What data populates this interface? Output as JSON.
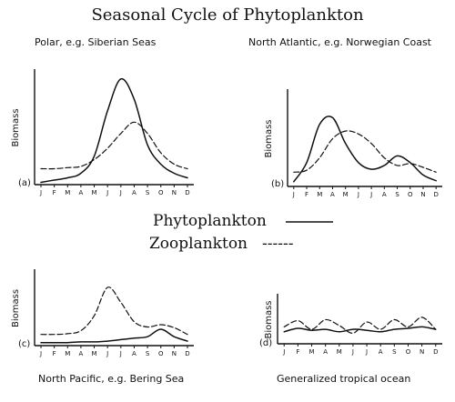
{
  "figure": {
    "title": "Seasonal Cycle of Phytoplankton",
    "legend": [
      {
        "label": "Phytoplankton",
        "style": "solid"
      },
      {
        "label": "Zooplankton",
        "style": "dashed",
        "marker": "------"
      }
    ]
  },
  "chart_data": [
    {
      "type": "line",
      "panel": "(a)",
      "title": "Polar, e.g. Siberian Seas",
      "ylabel": "Biomass",
      "categories": [
        "J",
        "F",
        "M",
        "A",
        "M",
        "J",
        "J",
        "A",
        "S",
        "O",
        "N",
        "D"
      ],
      "ylim": [
        0,
        100
      ],
      "series": [
        {
          "name": "Phytoplankton",
          "style": "solid",
          "values": [
            2,
            4,
            6,
            10,
            25,
            65,
            93,
            75,
            35,
            18,
            10,
            6
          ]
        },
        {
          "name": "Zooplankton",
          "style": "dashed",
          "values": [
            14,
            14,
            15,
            16,
            22,
            32,
            45,
            55,
            45,
            28,
            18,
            14
          ]
        }
      ]
    },
    {
      "type": "line",
      "panel": "(b)",
      "title": "North Atlantic, e.g. Norwegian Coast",
      "ylabel": "Biomass",
      "categories": [
        "J",
        "F",
        "M",
        "A",
        "M",
        "J",
        "J",
        "A",
        "S",
        "O",
        "N",
        "D"
      ],
      "ylim": [
        0,
        100
      ],
      "series": [
        {
          "name": "Phytoplankton",
          "style": "solid",
          "values": [
            5,
            25,
            65,
            72,
            45,
            25,
            18,
            22,
            32,
            25,
            12,
            6
          ]
        },
        {
          "name": "Zooplankton",
          "style": "dashed",
          "values": [
            15,
            17,
            30,
            50,
            58,
            55,
            45,
            30,
            22,
            24,
            20,
            15
          ]
        }
      ]
    },
    {
      "type": "line",
      "panel": "(c)",
      "title": "North Pacific, e.g. Bering Sea",
      "ylabel": "Biomass",
      "categories": [
        "J",
        "F",
        "M",
        "A",
        "M",
        "J",
        "J",
        "A",
        "S",
        "O",
        "N",
        "D"
      ],
      "ylim": [
        0,
        100
      ],
      "series": [
        {
          "name": "Phytoplankton",
          "style": "solid",
          "values": [
            4,
            4,
            4,
            5,
            5,
            6,
            8,
            10,
            12,
            22,
            12,
            6
          ]
        },
        {
          "name": "Zooplankton",
          "style": "dashed",
          "values": [
            15,
            15,
            16,
            20,
            40,
            78,
            58,
            32,
            25,
            28,
            24,
            15
          ]
        }
      ]
    },
    {
      "type": "line",
      "panel": "(d)",
      "title": "Generalized tropical ocean",
      "ylabel": "Biomass",
      "categories": [
        "J",
        "F",
        "M",
        "A",
        "M",
        "J",
        "J",
        "A",
        "S",
        "O",
        "N",
        "D"
      ],
      "ylim": [
        0,
        100
      ],
      "series": [
        {
          "name": "Phytoplankton",
          "style": "solid",
          "values": [
            25,
            32,
            28,
            30,
            25,
            30,
            28,
            25,
            30,
            32,
            35,
            30
          ]
        },
        {
          "name": "Zooplankton",
          "style": "dashed",
          "values": [
            35,
            48,
            30,
            50,
            38,
            22,
            45,
            30,
            50,
            35,
            55,
            30
          ]
        }
      ]
    }
  ]
}
